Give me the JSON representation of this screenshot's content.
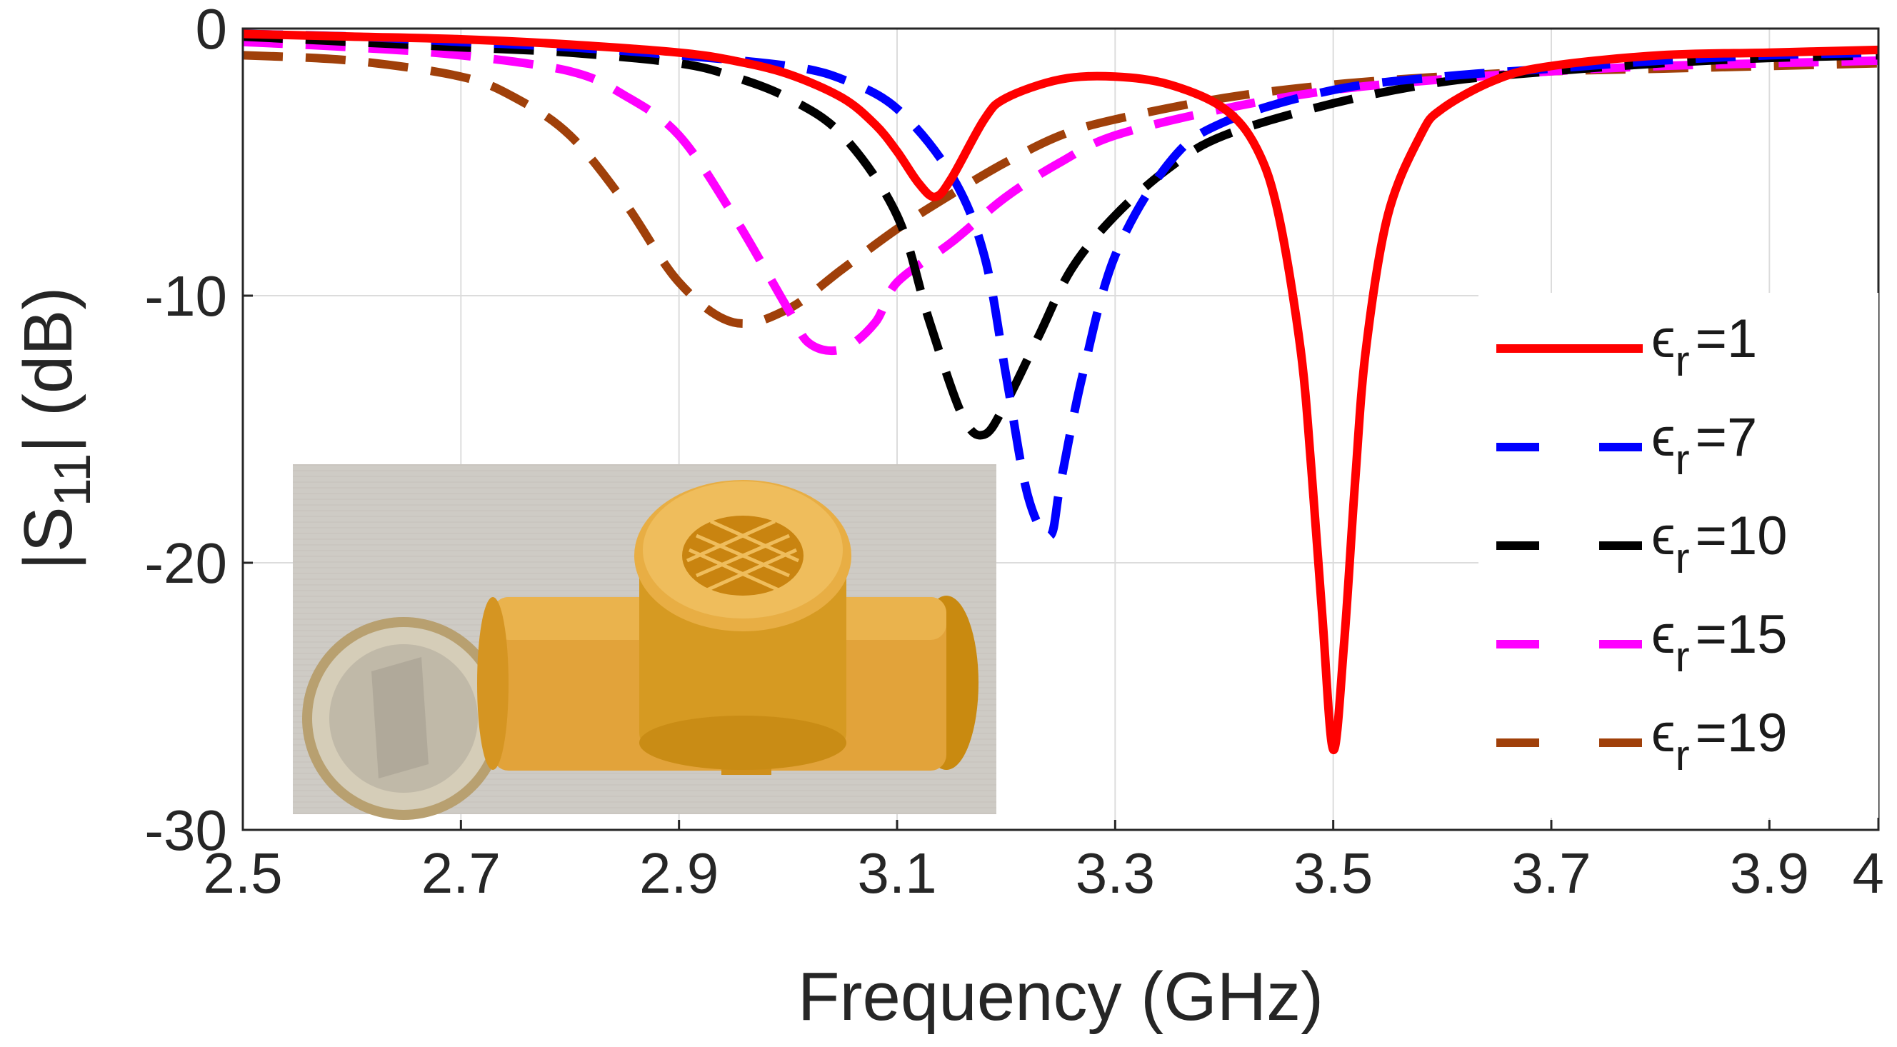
{
  "chart_data": {
    "type": "line",
    "xlabel": "Frequency (GHz)",
    "ylabel": "|S11| (dB)",
    "ylabel_parts": {
      "pre": "|S",
      "sub": "11",
      "post": "| (dB)"
    },
    "xlim": [
      2.5,
      4.0
    ],
    "ylim": [
      -30,
      0
    ],
    "xticks": [
      2.5,
      2.7,
      2.9,
      3.1,
      3.3,
      3.5,
      3.7,
      3.9,
      4.0
    ],
    "xtick_labels": [
      "2.5",
      "2.7",
      "2.9",
      "3.1",
      "3.3",
      "3.5",
      "3.7",
      "3.9",
      "4"
    ],
    "yticks": [
      0,
      -10,
      -20,
      -30
    ],
    "ytick_labels": [
      "0",
      "-10",
      "-20",
      "-30"
    ],
    "grid": true,
    "legend_position": "right",
    "series": [
      {
        "name": "εr =1",
        "symbol": "ϵ",
        "sub": "r",
        "suffix": "=1",
        "color": "#ff0000",
        "style": "solid",
        "x": [
          2.5,
          2.6,
          2.7,
          2.8,
          2.9,
          2.95,
          3.0,
          3.05,
          3.08,
          3.1,
          3.12,
          3.135,
          3.15,
          3.18,
          3.2,
          3.25,
          3.3,
          3.35,
          3.4,
          3.43,
          3.45,
          3.47,
          3.48,
          3.49,
          3.5,
          3.51,
          3.52,
          3.53,
          3.55,
          3.58,
          3.6,
          3.65,
          3.7,
          3.8,
          3.9,
          4.0
        ],
        "y": [
          -0.2,
          -0.3,
          -0.4,
          -0.6,
          -0.9,
          -1.2,
          -1.7,
          -2.6,
          -3.6,
          -4.6,
          -5.8,
          -6.3,
          -5.6,
          -3.4,
          -2.6,
          -1.9,
          -1.8,
          -2.1,
          -3.0,
          -4.5,
          -7.0,
          -12.0,
          -16.5,
          -22.0,
          -27.0,
          -23.0,
          -17.0,
          -12.0,
          -7.0,
          -4.0,
          -3.0,
          -1.9,
          -1.4,
          -1.0,
          -0.9,
          -0.8
        ]
      },
      {
        "name": "εr=7",
        "symbol": "ϵ",
        "sub": "r",
        "suffix": "=7",
        "color": "#0000ff",
        "style": "dashed",
        "x": [
          2.5,
          2.6,
          2.7,
          2.8,
          2.9,
          3.0,
          3.05,
          3.1,
          3.15,
          3.18,
          3.2,
          3.22,
          3.24,
          3.25,
          3.27,
          3.3,
          3.35,
          3.4,
          3.5,
          3.6,
          3.7,
          3.8,
          3.9,
          4.0
        ],
        "y": [
          -0.2,
          -0.3,
          -0.5,
          -0.7,
          -1.0,
          -1.4,
          -1.9,
          -3.0,
          -5.5,
          -8.5,
          -13.0,
          -17.5,
          -19.0,
          -17.0,
          -13.0,
          -8.5,
          -5.0,
          -3.5,
          -2.3,
          -1.8,
          -1.5,
          -1.2,
          -1.0,
          -0.9
        ]
      },
      {
        "name": "εr =10",
        "symbol": "ϵ",
        "sub": "r",
        "suffix": "=10",
        "color": "#000000",
        "style": "dashed",
        "x": [
          2.5,
          2.6,
          2.7,
          2.8,
          2.9,
          2.95,
          3.0,
          3.05,
          3.1,
          3.13,
          3.16,
          3.18,
          3.2,
          3.23,
          3.26,
          3.3,
          3.35,
          3.4,
          3.5,
          3.6,
          3.7,
          3.8,
          3.9,
          4.0
        ],
        "y": [
          -0.3,
          -0.5,
          -0.7,
          -0.9,
          -1.3,
          -1.8,
          -2.6,
          -4.0,
          -7.0,
          -11.0,
          -14.5,
          -15.2,
          -14.0,
          -11.5,
          -9.0,
          -7.0,
          -5.2,
          -4.0,
          -2.8,
          -2.0,
          -1.6,
          -1.3,
          -1.1,
          -1.0
        ]
      },
      {
        "name": "εr =15",
        "symbol": "ϵ",
        "sub": "r",
        "suffix": "=15",
        "color": "#ff00ff",
        "style": "dashed",
        "x": [
          2.5,
          2.6,
          2.7,
          2.8,
          2.85,
          2.9,
          2.95,
          3.0,
          3.02,
          3.05,
          3.08,
          3.1,
          3.15,
          3.2,
          3.25,
          3.3,
          3.4,
          3.5,
          3.6,
          3.7,
          3.8,
          3.9,
          4.0
        ],
        "y": [
          -0.5,
          -0.7,
          -1.0,
          -1.6,
          -2.5,
          -4.0,
          -7.0,
          -10.5,
          -11.8,
          -12.0,
          -11.0,
          -9.5,
          -8.0,
          -6.3,
          -5.0,
          -4.0,
          -3.0,
          -2.3,
          -1.9,
          -1.6,
          -1.4,
          -1.3,
          -1.2
        ]
      },
      {
        "name": "εr =19",
        "symbol": "ϵ",
        "sub": "r",
        "suffix": "=19",
        "color": "#a0400a",
        "style": "dashed",
        "x": [
          2.5,
          2.6,
          2.7,
          2.75,
          2.8,
          2.85,
          2.9,
          2.95,
          3.0,
          3.05,
          3.1,
          3.15,
          3.2,
          3.25,
          3.3,
          3.4,
          3.5,
          3.6,
          3.7,
          3.8,
          3.9,
          4.0
        ],
        "y": [
          -1.0,
          -1.2,
          -1.8,
          -2.6,
          -4.0,
          -6.5,
          -9.5,
          -11.0,
          -10.5,
          -9.0,
          -7.5,
          -6.2,
          -5.0,
          -4.0,
          -3.4,
          -2.6,
          -2.1,
          -1.8,
          -1.6,
          -1.5,
          -1.4,
          -1.3
        ]
      }
    ]
  }
}
